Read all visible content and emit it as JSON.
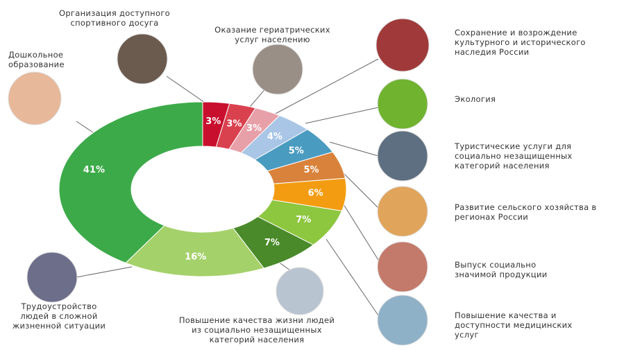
{
  "chart_data": {
    "type": "donut",
    "categories": [
      "Организация доступного спортивного досуга",
      "Оказание гериатрических услуг населению",
      "Сохранение и возрождение культурного и исторического наследия России",
      "Экология",
      "Туристические услуги для социально незащищенных категорий населения",
      "Развитие сельского хозяйства в регионах России",
      "Выпуск социально значимой продукции",
      "Повышение качества и доступности медицинских услуг",
      "Повышение качества жизни людей из социально незащищенных категорий населения",
      "Трудоустройство людей в сложной жизненной ситуации",
      "Дошкольное образование"
    ],
    "values": [
      3,
      3,
      3,
      4,
      5,
      5,
      6,
      7,
      7,
      16,
      41
    ],
    "value_labels": [
      "3%",
      "3%",
      "3%",
      "4%",
      "5%",
      "5%",
      "6%",
      "7%",
      "7%",
      "16%",
      "41%"
    ],
    "colors": [
      "#c8102e",
      "#d9414f",
      "#e8a0a8",
      "#a9c6e6",
      "#4a9bc0",
      "#d9823b",
      "#f39c12",
      "#8dc63f",
      "#4a8a2a",
      "#a5d16b",
      "#3daa4a"
    ]
  }
}
